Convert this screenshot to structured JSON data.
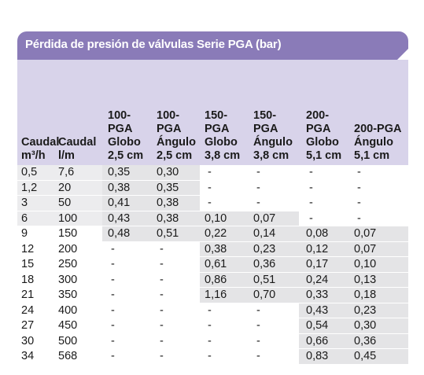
{
  "table": {
    "title": "Pérdida de presión de válvulas Serie PGA (bar)",
    "columns": [
      "Caudal\nm³/h",
      "Caudal\nl/m",
      "100-\nPGA\nGlobo\n2,5 cm",
      "100-\nPGA\nÁngulo\n2,5 cm",
      "150-\nPGA\nGlobo\n3,8 cm",
      "150-\nPGA\nÁngulo\n3,8 cm",
      "200-\nPGA\nGlobo\n5,1 cm",
      "200-PGA\nÁngulo\n5,1 cm"
    ],
    "rows": [
      [
        "0,5",
        "7,6",
        "0,35",
        "0,30",
        "-",
        "-",
        "-",
        "-"
      ],
      [
        "1,2",
        "20",
        "0,38",
        "0,35",
        "-",
        "-",
        "-",
        "-"
      ],
      [
        "3",
        "50",
        "0,41",
        "0,38",
        "-",
        "-",
        "-",
        "-"
      ],
      [
        "6",
        "100",
        "0,43",
        "0,38",
        "0,10",
        "0,07",
        "-",
        "-"
      ],
      [
        "9",
        "150",
        "0,48",
        "0,51",
        "0,22",
        "0,14",
        "0,08",
        "0,07"
      ],
      [
        "12",
        "200",
        "-",
        "-",
        "0,38",
        "0,23",
        "0,12",
        "0,07"
      ],
      [
        "15",
        "250",
        "-",
        "-",
        "0,61",
        "0,36",
        "0,17",
        "0,10"
      ],
      [
        "18",
        "300",
        "-",
        "-",
        "0,86",
        "0,51",
        "0,24",
        "0,13"
      ],
      [
        "21",
        "350",
        "-",
        "-",
        "1,16",
        "0,70",
        "0,33",
        "0,18"
      ],
      [
        "24",
        "400",
        "-",
        "-",
        "-",
        "-",
        "0,43",
        "0,23"
      ],
      [
        "27",
        "450",
        "-",
        "-",
        "-",
        "-",
        "0,54",
        "0,30"
      ],
      [
        "30",
        "500",
        "-",
        "-",
        "-",
        "-",
        "0,66",
        "0,36"
      ],
      [
        "34",
        "568",
        "-",
        "-",
        "-",
        "-",
        "0,83",
        "0,45"
      ]
    ]
  },
  "colors": {
    "title_bar": "#8a7bb8",
    "header_band": "#d8d3ea",
    "shaded_cell": "#e4e4e6"
  }
}
